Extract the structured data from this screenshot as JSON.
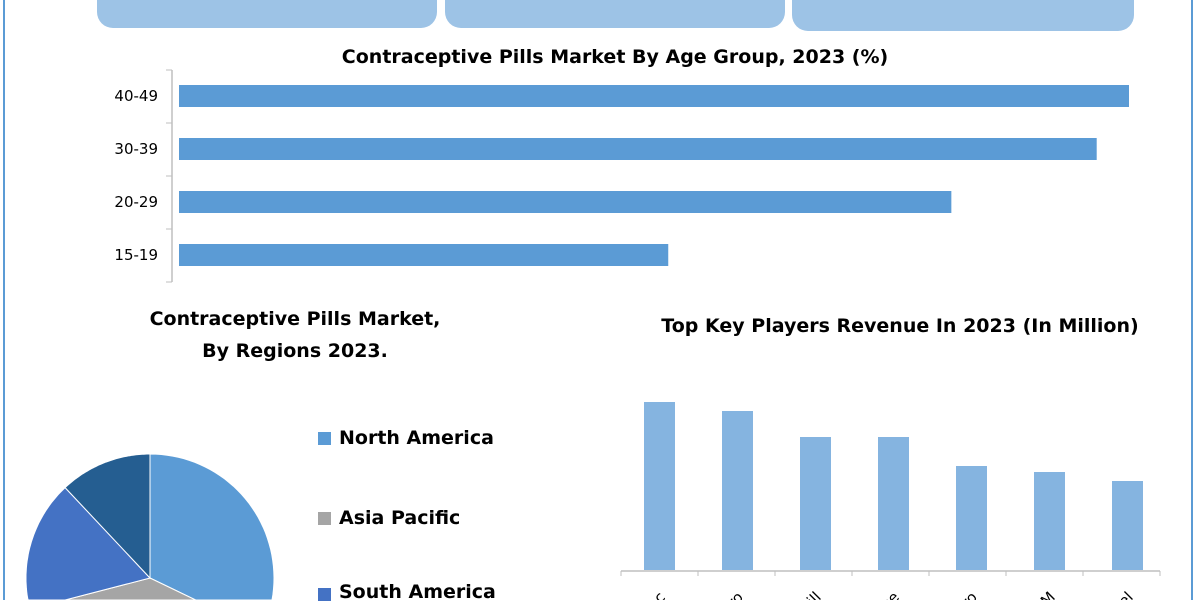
{
  "colors": {
    "bar": "#5b9bd5",
    "column": "#85b4e0",
    "frame": "#5b9bd5",
    "header_box": "#9dc3e6"
  },
  "chart_data": [
    {
      "type": "bar",
      "orientation": "horizontal",
      "title": "Contraceptive Pills Market By Age Group, 2023 (%)",
      "categories": [
        "40-49",
        "30-39",
        "20-29",
        "15-19"
      ],
      "values": [
        100,
        96.6,
        81.3,
        51.5
      ],
      "grid": false
    },
    {
      "type": "pie",
      "title_line1": "Contraceptive Pills Market,",
      "title_line2": "By Regions 2023.",
      "series": [
        {
          "name": "North America",
          "value": 44,
          "color": "#5b9bd5"
        },
        {
          "name": "Asia Pacific",
          "value": 18,
          "color": "#a5a5a5"
        },
        {
          "name": "South America",
          "value": 26,
          "color": "#4472c4"
        },
        {
          "value": 12,
          "color": "#255e91"
        }
      ]
    },
    {
      "type": "bar",
      "orientation": "vertical",
      "title": "Top Key Players Revenue In 2023 (In Million)",
      "categories": [
        "ac",
        "ro",
        "ill",
        "ce",
        "ro",
        "M",
        "el"
      ],
      "values": [
        168,
        159,
        133,
        133,
        104,
        98,
        89
      ],
      "grid": false
    }
  ]
}
